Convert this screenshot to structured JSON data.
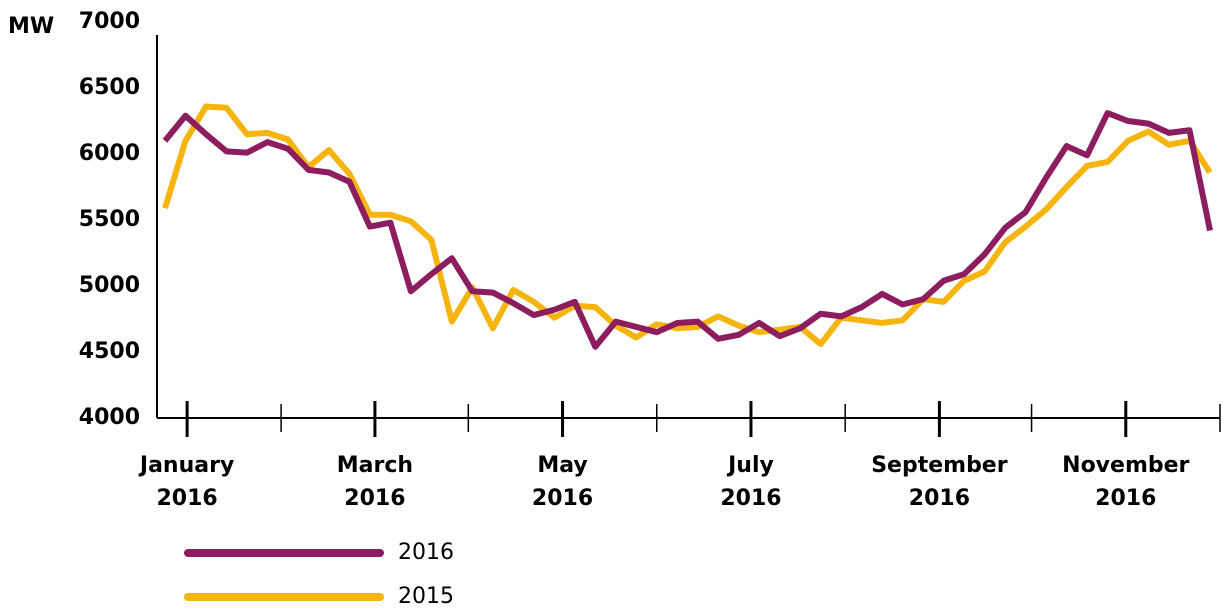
{
  "chart_data": {
    "type": "line",
    "y_unit": "MW",
    "ylim": [
      4000,
      7000
    ],
    "yticks": [
      4000,
      4500,
      5000,
      5500,
      6000,
      6500,
      7000
    ],
    "xlim": [
      -0.4,
      51.5
    ],
    "xticks": [
      {
        "value": 1.07,
        "label": [
          "January",
          "2016"
        ]
      },
      {
        "value": 10.24,
        "label": [
          "March",
          "2016"
        ]
      },
      {
        "value": 19.4,
        "label": [
          "May",
          "2016"
        ]
      },
      {
        "value": 28.6,
        "label": [
          "July",
          "2016"
        ]
      },
      {
        "value": 37.8,
        "label": [
          "September",
          "2016"
        ]
      },
      {
        "value": 46.9,
        "label": [
          "November",
          "2016"
        ]
      }
    ],
    "minor_xticks": [
      5.66,
      14.8,
      24,
      33.2,
      42.3,
      51.5
    ],
    "series": [
      {
        "name": "2016",
        "color": "#8c1d5f",
        "values": [
          6100,
          6290,
          6150,
          6020,
          6010,
          6090,
          6040,
          5880,
          5860,
          5790,
          5450,
          5480,
          4960,
          5090,
          5210,
          4960,
          4950,
          4870,
          4780,
          4820,
          4880,
          4540,
          4730,
          4690,
          4650,
          4720,
          4730,
          4600,
          4630,
          4720,
          4620,
          4680,
          4790,
          4770,
          4840,
          4940,
          4860,
          4900,
          5040,
          5090,
          5240,
          5440,
          5560,
          5820,
          6060,
          5990,
          6310,
          6250,
          6230,
          6160,
          6180,
          5420
        ]
      },
      {
        "name": "2015",
        "color": "#f6b40e",
        "values": [
          5590,
          6100,
          6360,
          6350,
          6150,
          6160,
          6110,
          5900,
          6030,
          5850,
          5540,
          5540,
          5490,
          5350,
          4730,
          4990,
          4680,
          4970,
          4880,
          4760,
          4850,
          4840,
          4700,
          4610,
          4710,
          4680,
          4690,
          4770,
          4700,
          4650,
          4670,
          4690,
          4560,
          4760,
          4740,
          4720,
          4740,
          4900,
          4880,
          5040,
          5110,
          5330,
          5450,
          5580,
          5750,
          5910,
          5940,
          6100,
          6170,
          6070,
          6100,
          5860
        ]
      }
    ]
  }
}
